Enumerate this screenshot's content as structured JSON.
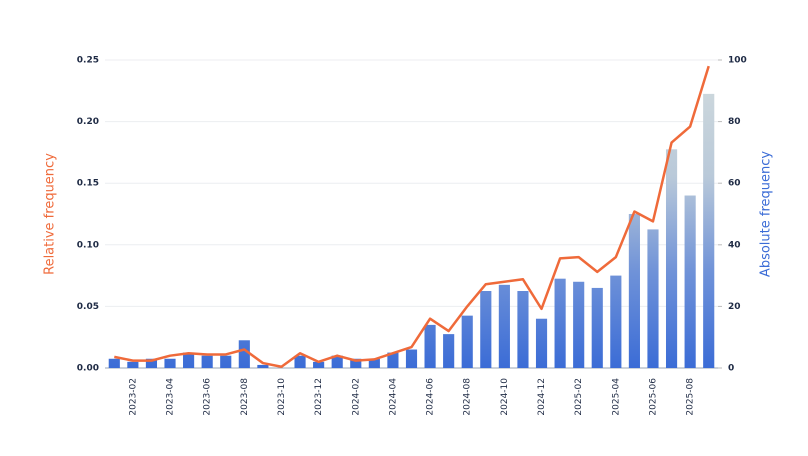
{
  "chart_data": {
    "type": "bar_line",
    "ylabel": "Relative frequency",
    "y2label": "Absolute frequency",
    "categories": [
      null,
      "2023-02",
      null,
      "2023-04",
      null,
      "2023-06",
      null,
      "2023-08",
      null,
      "2023-10",
      null,
      "2023-12",
      null,
      "2024-02",
      null,
      "2024-04",
      null,
      "2024-06",
      null,
      "2024-08",
      null,
      "2024-10",
      null,
      "2024-12",
      null,
      "2025-02",
      null,
      "2025-04",
      null,
      "2025-06",
      null,
      "2025-08",
      null
    ],
    "series": [
      {
        "name": "Relative frequency",
        "type": "line",
        "color": "#ef6a3a",
        "values": [
          0.009,
          0.006,
          0.006,
          0.01,
          0.012,
          0.011,
          0.011,
          0.015,
          0.004,
          0.001,
          0.012,
          0.005,
          0.01,
          0.006,
          0.007,
          0.012,
          0.017,
          0.04,
          0.03,
          0.05,
          0.068,
          0.07,
          0.072,
          0.048,
          0.089,
          0.09,
          0.078,
          0.09,
          0.127,
          0.119,
          0.183,
          0.196,
          0.245
        ]
      },
      {
        "name": "Absolute frequency",
        "type": "bar",
        "axis": "y2",
        "color": "#3b6cd6",
        "values": [
          3,
          2,
          3,
          3,
          5,
          4,
          4,
          9,
          1,
          0,
          4,
          2,
          4,
          3,
          3,
          5,
          6,
          14,
          11,
          17,
          25,
          27,
          25,
          16,
          29,
          28,
          26,
          30,
          50,
          45,
          71,
          56,
          89
        ]
      }
    ],
    "ylim": [
      0,
      0.25
    ],
    "yticks": [
      {
        "value": 0,
        "label": "0.00"
      },
      0.05,
      {
        "value": 0.1,
        "label": "0.10"
      },
      0.15,
      {
        "value": 0.2,
        "label": "0.20"
      },
      0.25
    ],
    "y2lim": [
      0,
      100
    ],
    "y2ticks": [
      0,
      20,
      40,
      60,
      80,
      100
    ],
    "grid": true
  }
}
